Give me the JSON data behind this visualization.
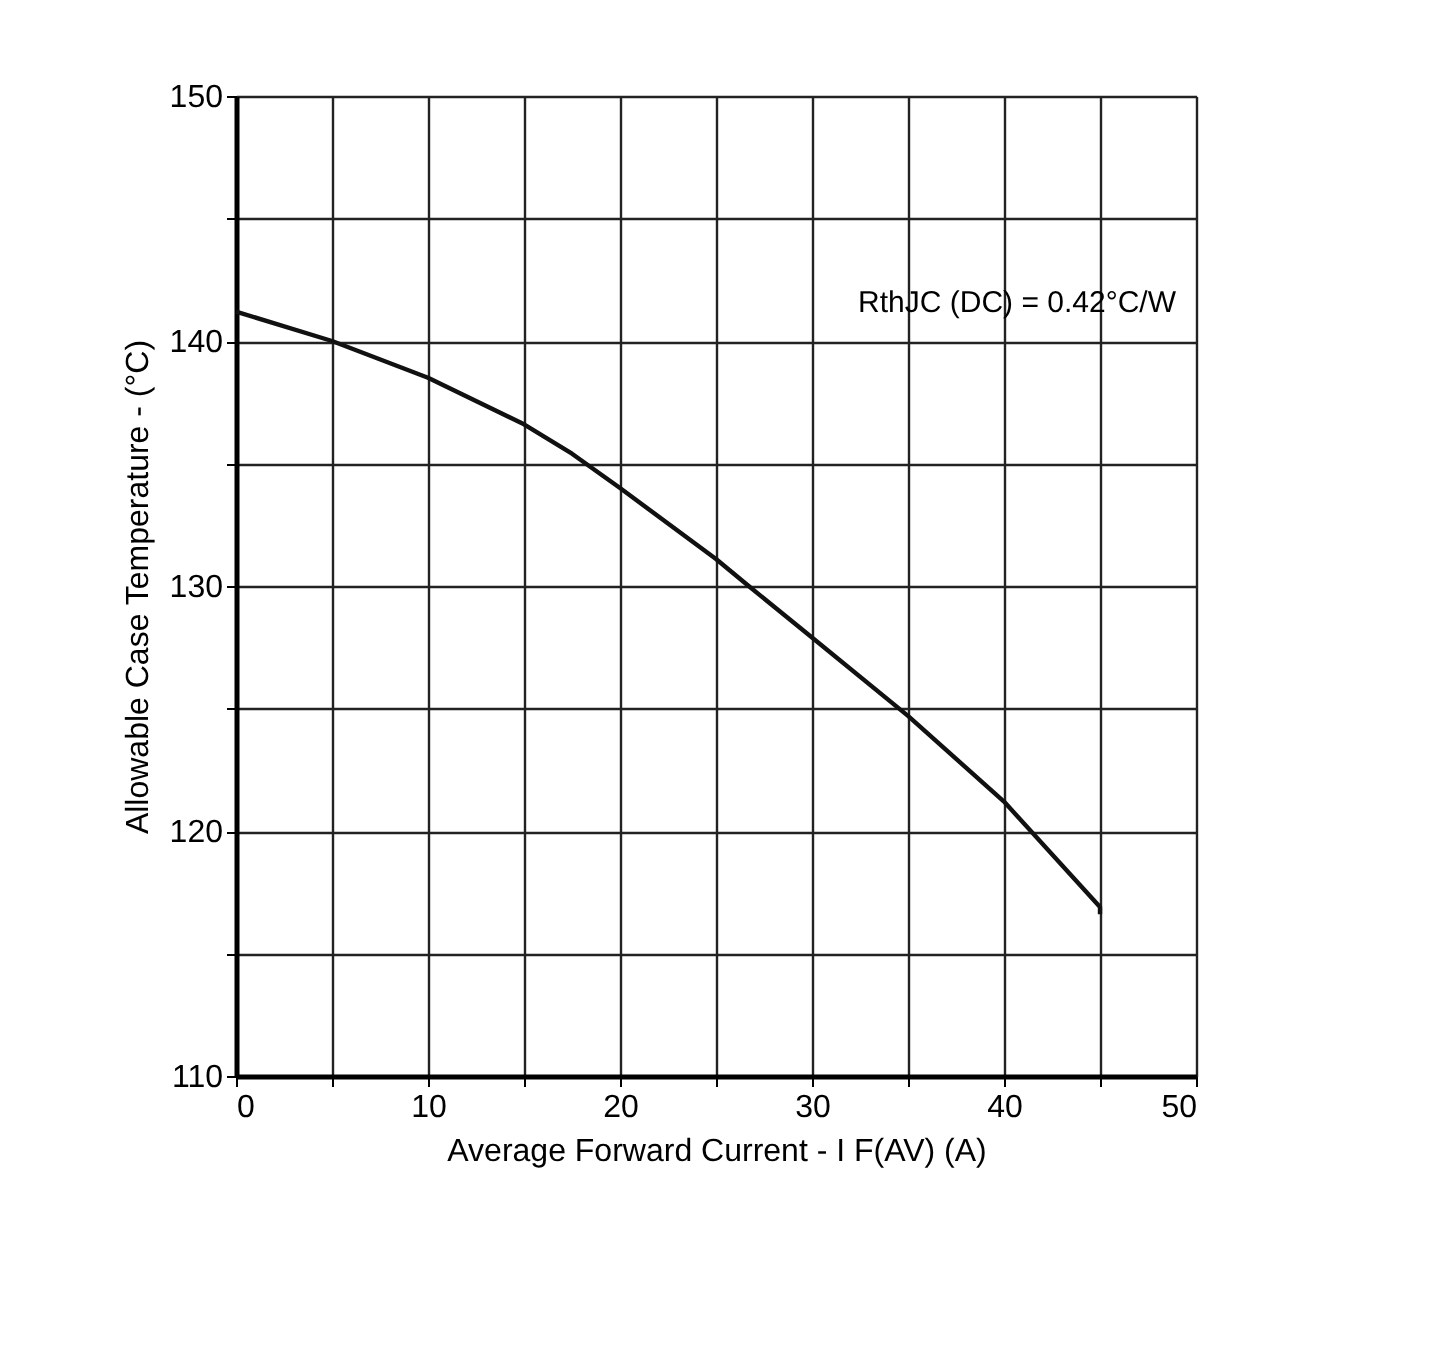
{
  "chart_data": {
    "type": "line",
    "xlabel": "Average Forward Current - I F(AV) (A)",
    "ylabel": "Allowable Case Temperature - (°C)",
    "annotations": [
      "RthJC (DC) = 0.42°C/W"
    ],
    "series": [
      {
        "color": "#111111",
        "x": [
          0,
          5,
          10,
          15,
          17.5,
          20,
          25,
          26.7,
          30,
          35,
          40,
          45,
          45
        ],
        "values": [
          141.2,
          140.0,
          138.5,
          136.6,
          135.4,
          134.0,
          131.1,
          130.0,
          127.9,
          124.7,
          121.2,
          116.9,
          116.6
        ]
      }
    ],
    "xlim": [
      0,
      50
    ],
    "ylim": [
      110,
      150
    ],
    "xticks": [
      0,
      {
        "value": 5,
        "label": null
      },
      10,
      {
        "value": 15,
        "label": null
      },
      20,
      {
        "value": 25,
        "label": null
      },
      30,
      {
        "value": 35,
        "label": null
      },
      40,
      {
        "value": 45,
        "label": null
      },
      50
    ],
    "yticks": [
      110,
      {
        "value": 115,
        "label": null
      },
      120,
      {
        "value": 125,
        "label": null
      },
      130,
      {
        "value": 135,
        "label": null
      },
      140,
      {
        "value": 145,
        "label": null
      },
      150
    ],
    "grid": true,
    "marker": "none",
    "line_style": "solid"
  }
}
